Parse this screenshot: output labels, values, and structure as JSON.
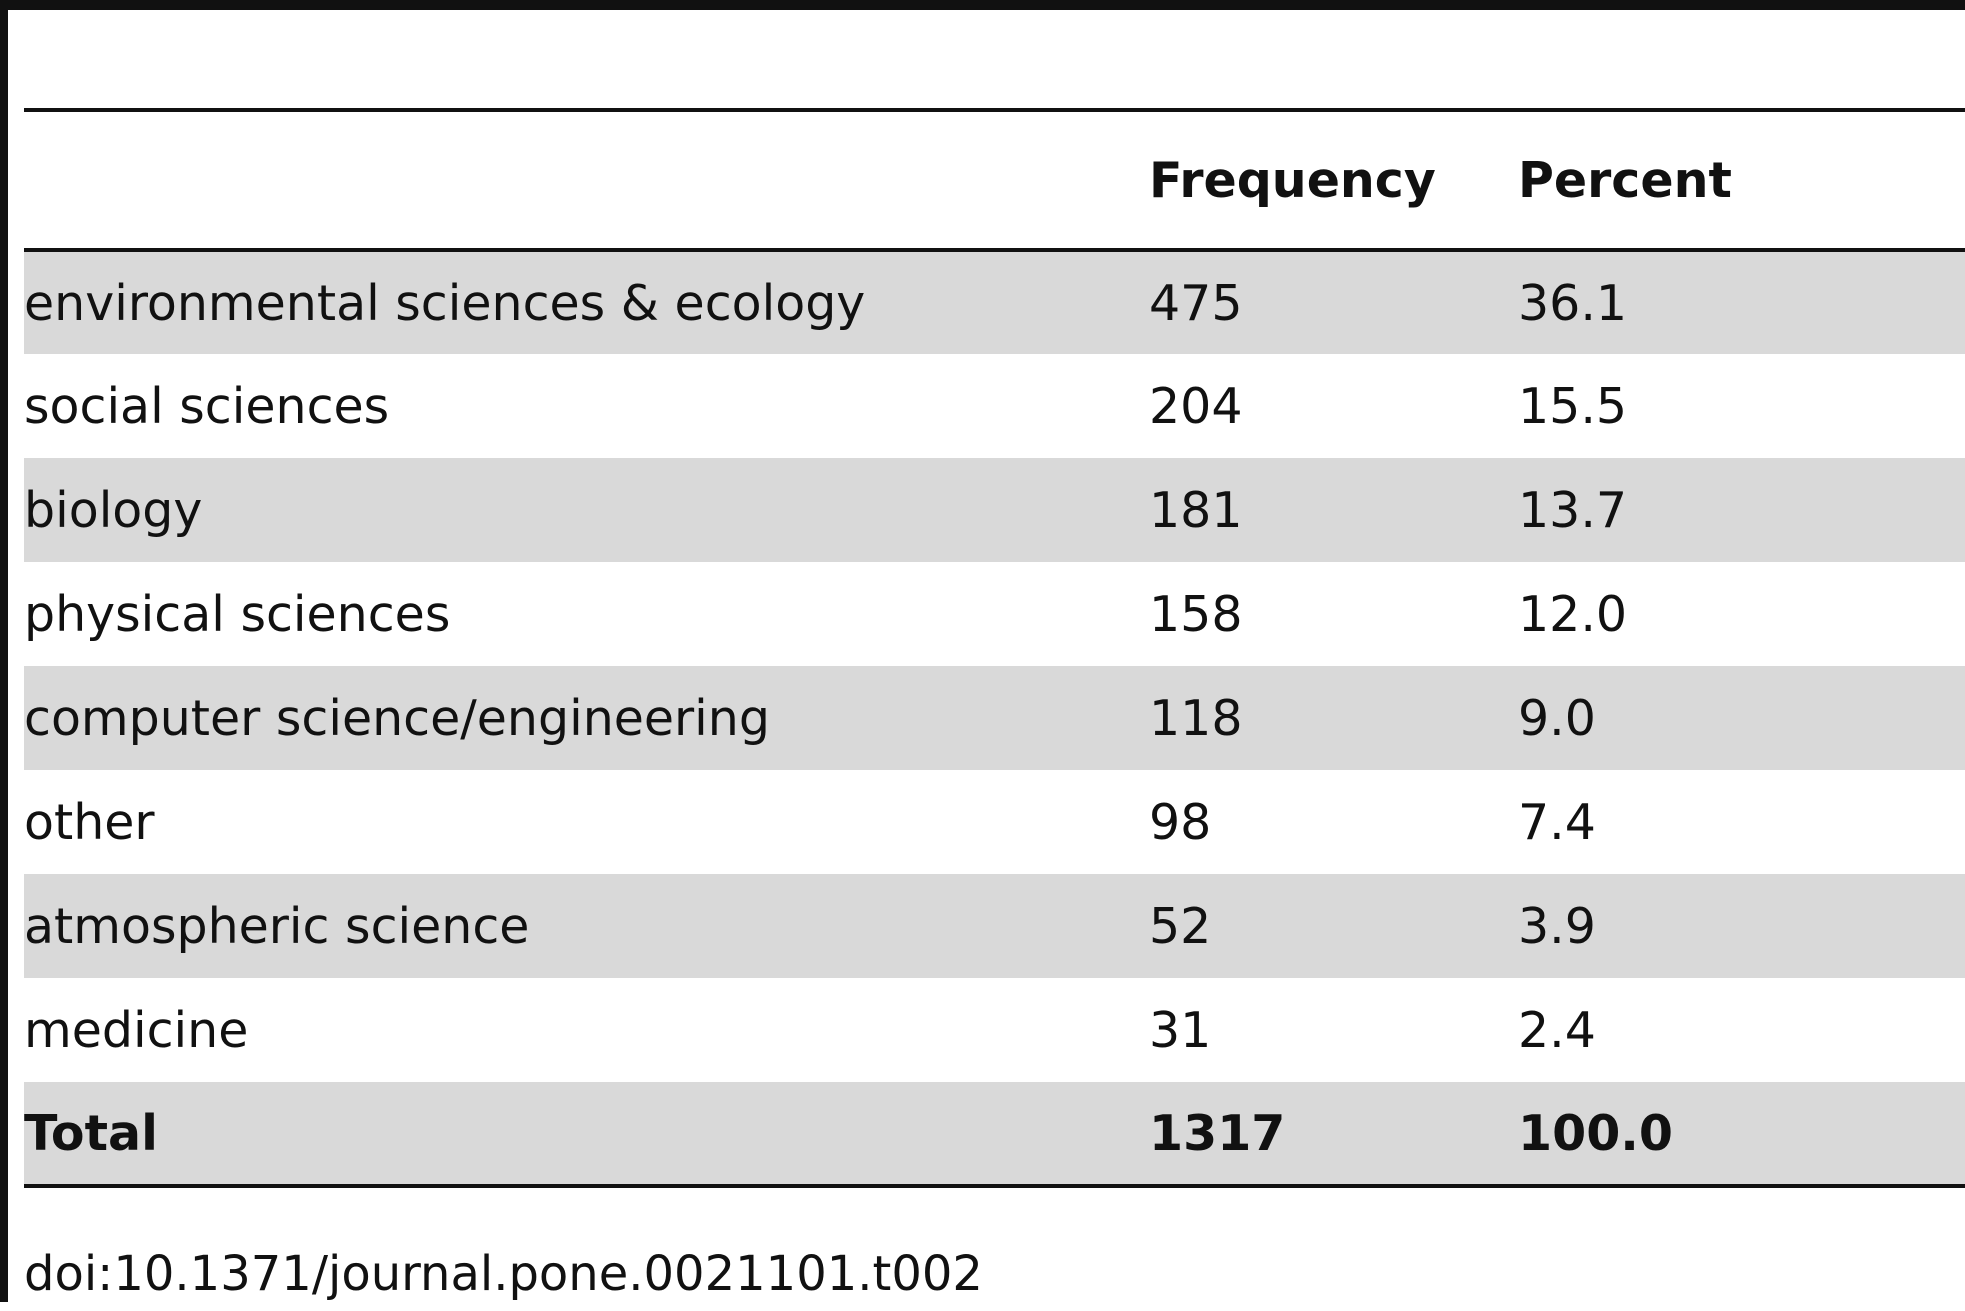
{
  "table": {
    "headers": [
      "",
      "Frequency",
      "Percent"
    ],
    "rows": [
      [
        "environmental sciences & ecology",
        "475",
        "36.1"
      ],
      [
        "social sciences",
        "204",
        "15.5"
      ],
      [
        "biology",
        "181",
        "13.7"
      ],
      [
        "physical sciences",
        "158",
        "12.0"
      ],
      [
        "computer science/engineering",
        "118",
        "9.0"
      ],
      [
        "other",
        "98",
        "7.4"
      ],
      [
        "atmospheric science",
        "52",
        "3.9"
      ],
      [
        "medicine",
        "31",
        "2.4"
      ]
    ],
    "total": [
      "Total",
      "1317",
      "100.0"
    ]
  },
  "caption": "doi:10.1371/journal.pone.0021101.t002",
  "colors": {
    "shade": "#d9d9d9",
    "rule": "#111111"
  }
}
